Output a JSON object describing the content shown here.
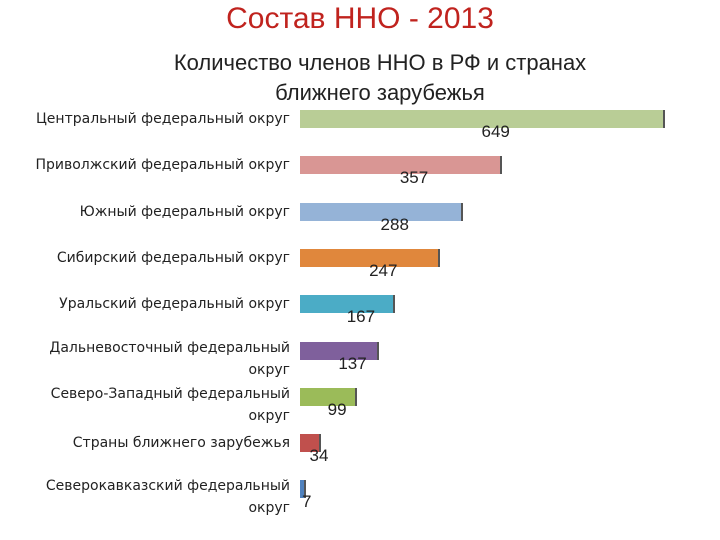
{
  "chart_data": {
    "type": "bar",
    "orientation": "horizontal",
    "title": "Состав ННО - 2013",
    "subtitle": "Количество членов ННО в РФ и странах ближнего зарубежья",
    "categories": [
      "Центральный федеральный округ",
      "Приволжский федеральный округ",
      "Южный федеральный округ",
      "Сибирский федеральный округ",
      "Уральский федеральный округ",
      "Дальневосточный федеральный округ",
      "Северо-Западный федеральный округ",
      "Страны ближнего зарубежья",
      "Северокавказский федеральный округ"
    ],
    "values": [
      649,
      357,
      288,
      247,
      167,
      137,
      99,
      34,
      7
    ],
    "colors": [
      "#b9cd96",
      "#d99694",
      "#95b3d7",
      "#e0873c",
      "#4bacc6",
      "#7f609c",
      "#9bbb59",
      "#c0504d",
      "#4f81bd"
    ]
  }
}
